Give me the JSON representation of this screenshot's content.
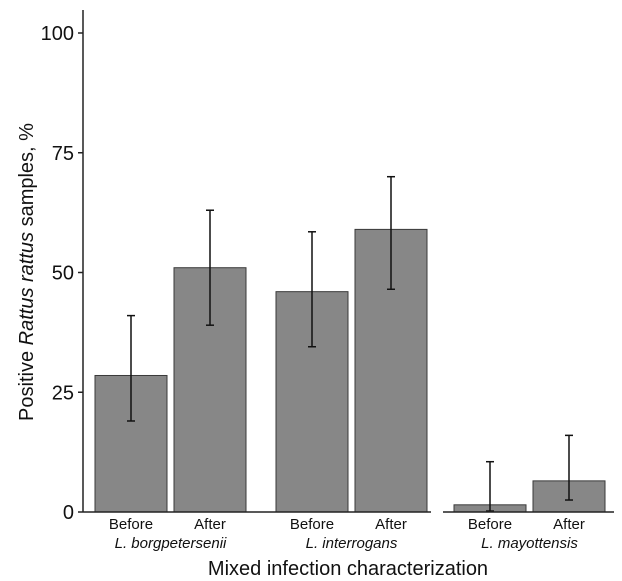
{
  "chart_data": {
    "type": "bar",
    "ylabel_parts": [
      {
        "text": "Positive ",
        "italic": false
      },
      {
        "text": "Rattus rattus",
        "italic": true
      },
      {
        "text": " samples, %",
        "italic": false
      }
    ],
    "xlabel": "Mixed infection characterization",
    "ylim": [
      0,
      100
    ],
    "yticks": [
      "0",
      "25",
      "50",
      "75",
      "100"
    ],
    "grid": false,
    "bar_color": "#878787",
    "groups": [
      {
        "species": "L. borgpetersenii",
        "bars": [
          {
            "label": "Before",
            "value": 28.5,
            "ci_low": 19,
            "ci_high": 41
          },
          {
            "label": "After",
            "value": 51,
            "ci_low": 39,
            "ci_high": 63
          }
        ]
      },
      {
        "species": "L. interrogans",
        "bars": [
          {
            "label": "Before",
            "value": 46,
            "ci_low": 34.5,
            "ci_high": 58.5
          },
          {
            "label": "After",
            "value": 59,
            "ci_low": 46.5,
            "ci_high": 70
          }
        ]
      },
      {
        "species": "L. mayottensis",
        "bars": [
          {
            "label": "Before",
            "value": 1.5,
            "ci_low": 0.2,
            "ci_high": 10.5
          },
          {
            "label": "After",
            "value": 6.5,
            "ci_low": 2.5,
            "ci_high": 16
          }
        ]
      }
    ]
  }
}
